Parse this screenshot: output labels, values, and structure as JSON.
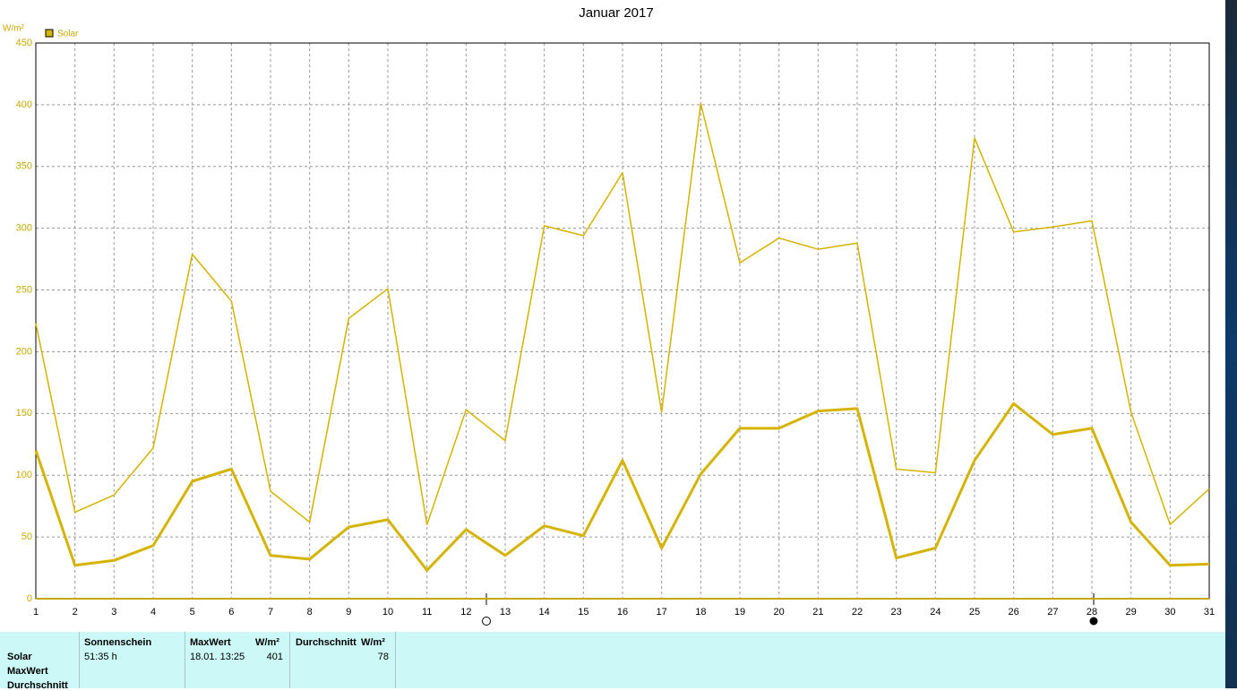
{
  "chart_data": {
    "type": "line",
    "title": "Januar 2017",
    "y_unit": "W/m²",
    "legend": "top-left",
    "x": [
      1,
      2,
      3,
      4,
      5,
      6,
      7,
      8,
      9,
      10,
      11,
      12,
      13,
      14,
      15,
      16,
      17,
      18,
      19,
      20,
      21,
      22,
      23,
      24,
      25,
      26,
      27,
      28,
      29,
      30,
      31
    ],
    "xlim": [
      1,
      31
    ],
    "ylim": [
      0,
      450
    ],
    "yticks": [
      0,
      50,
      100,
      150,
      200,
      250,
      300,
      350,
      400,
      450
    ],
    "grid": true,
    "series": [
      {
        "name": "Solar",
        "color": "#d4b400",
        "line_width": 1.5,
        "values": [
          223,
          70,
          84,
          122,
          279,
          241,
          87,
          62,
          227,
          251,
          60,
          153,
          128,
          302,
          294,
          345,
          151,
          401,
          272,
          292,
          283,
          288,
          105,
          102,
          373,
          297,
          301,
          306,
          151,
          60,
          89
        ]
      },
      {
        "color": "#d4b400",
        "line_width": 3,
        "values": [
          120,
          27,
          31,
          43,
          95,
          105,
          35,
          32,
          58,
          64,
          23,
          56,
          35,
          59,
          51,
          112,
          41,
          101,
          138,
          138,
          152,
          154,
          33,
          41,
          112,
          158,
          133,
          138,
          62,
          27,
          28
        ]
      }
    ]
  },
  "summary": {
    "row_labels": [
      "Solar",
      "MaxWert",
      "Durchschnitt"
    ],
    "sunshine": {
      "header": "Sonnenschein",
      "value": "51:35 h"
    },
    "max": {
      "header": "MaxWert",
      "unit": "W/m²",
      "time": "18.01.  13:25",
      "value": "401"
    },
    "avg": {
      "header": "Durchschnitt",
      "unit": "W/m²",
      "value": "78"
    }
  }
}
